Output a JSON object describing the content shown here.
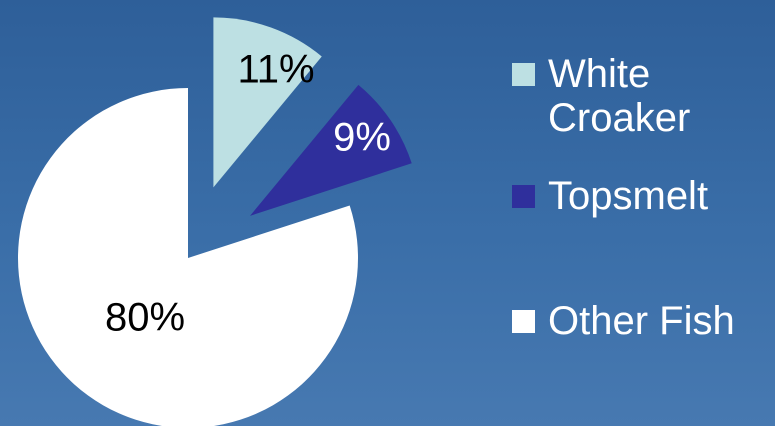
{
  "chart_data": {
    "type": "pie",
    "title": "",
    "categories": [
      "White Croaker",
      "Topsmelt",
      "Other Fish"
    ],
    "values": [
      11,
      9,
      80
    ],
    "labels": [
      "11%",
      "9%",
      "80%"
    ],
    "exploded": true,
    "colors": [
      "#bde0e3",
      "#2f2f9c",
      "#ffffff"
    ],
    "label_colors": [
      "#000000",
      "#ffffff",
      "#000000"
    ],
    "legend": {
      "placement": "right",
      "entries": [
        "White Croaker",
        "Topsmelt",
        "Other Fish"
      ]
    }
  }
}
